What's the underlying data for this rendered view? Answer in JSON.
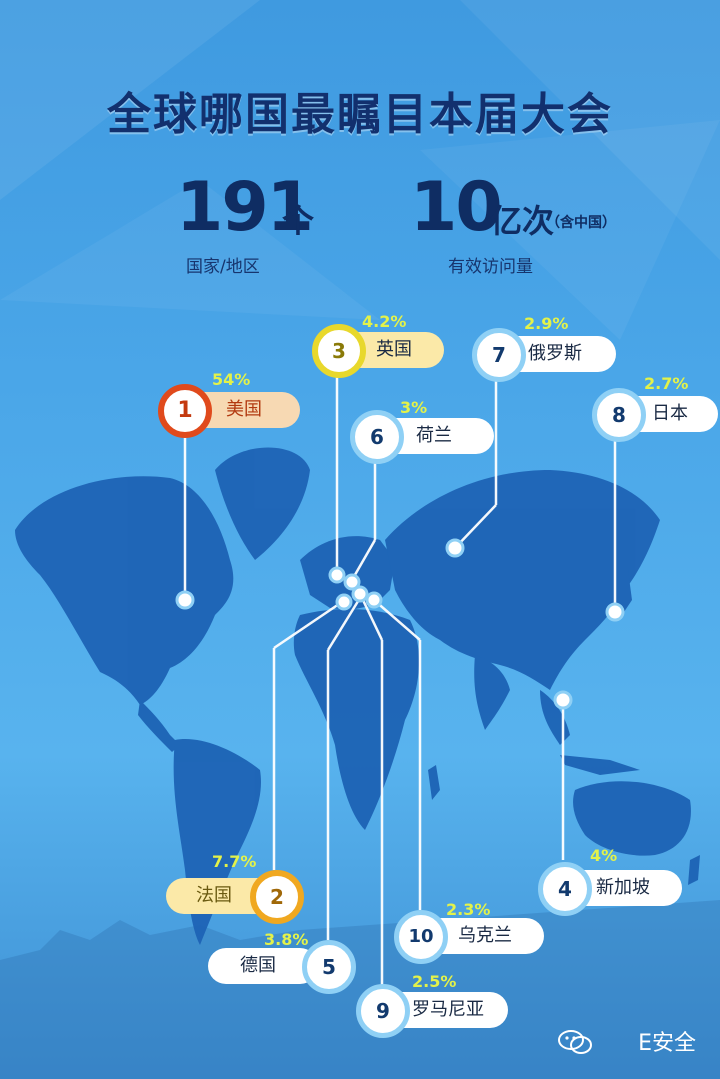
{
  "title": "全球哪国最瞩目本届大会",
  "stats": [
    {
      "number": "191",
      "unit": "个",
      "note": "",
      "label": "国家/地区"
    },
    {
      "number": "10",
      "unit": "亿次",
      "note": "（含中国）",
      "label": "有效访问量"
    }
  ],
  "countries": [
    {
      "rank": "1",
      "name": "美国",
      "pct": "54%"
    },
    {
      "rank": "2",
      "name": "法国",
      "pct": "7.7%"
    },
    {
      "rank": "3",
      "name": "英国",
      "pct": "4.2%"
    },
    {
      "rank": "4",
      "name": "新加坡",
      "pct": "4%"
    },
    {
      "rank": "5",
      "name": "德国",
      "pct": "3.8%"
    },
    {
      "rank": "6",
      "name": "荷兰",
      "pct": "3%"
    },
    {
      "rank": "7",
      "name": "俄罗斯",
      "pct": "2.9%"
    },
    {
      "rank": "8",
      "name": "日本",
      "pct": "2.7%"
    },
    {
      "rank": "9",
      "name": "罗马尼亚",
      "pct": "2.5%"
    },
    {
      "rank": "10",
      "name": "乌克兰",
      "pct": "2.3%"
    }
  ],
  "watermark": "E安全",
  "colors": {
    "background": "#4aa6e8",
    "map": "#1d63b5",
    "title": "#12306e",
    "percent": "#e3f24a",
    "rank1_ring": "#e04a1c",
    "rank2_ring": "#f0a820",
    "rank3_ring": "#e8d82c"
  },
  "icons": {
    "watermark": "wechat-icon"
  }
}
